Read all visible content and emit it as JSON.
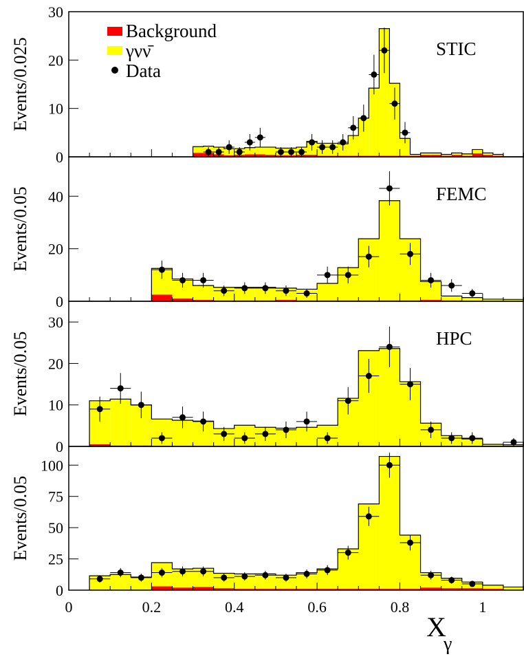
{
  "chart_data": [
    {
      "type": "bar",
      "panel_label": "STIC",
      "ylabel": "Events/0.025",
      "ylim": [
        0,
        30
      ],
      "yticks": [
        0,
        10,
        20,
        30
      ],
      "bin_width": 0.025,
      "bin_starts": [
        0.3,
        0.325,
        0.35,
        0.375,
        0.4,
        0.425,
        0.45,
        0.475,
        0.5,
        0.525,
        0.55,
        0.575,
        0.6,
        0.625,
        0.65,
        0.675,
        0.7,
        0.725,
        0.75,
        0.775,
        0.8,
        0.825,
        0.85,
        0.875,
        0.9,
        0.925,
        0.95,
        0.975,
        1.0,
        1.025,
        1.05,
        1.075
      ],
      "series": [
        {
          "name": "Background",
          "values": [
            0.8,
            0.8,
            0.5,
            0.3,
            0.4,
            0.5,
            0.5,
            0.4,
            0.3,
            0.3,
            0.4,
            0.4,
            0.2,
            0.2,
            0.2,
            0.2,
            0.2,
            0.2,
            0.2,
            0.2,
            0.2,
            0.2,
            0.4,
            0.4,
            0.2,
            0.4,
            0.2,
            0.7,
            0.4,
            0.2,
            0.0,
            0.0
          ]
        },
        {
          "name": "γνν̄",
          "values": [
            1.3,
            1.4,
            1.5,
            1.4,
            1.3,
            1.4,
            1.5,
            1.6,
            1.5,
            1.5,
            1.6,
            2.8,
            2.6,
            2.6,
            2.5,
            4.2,
            7.8,
            14.0,
            26.3,
            15.0,
            3.6,
            0.3,
            0.4,
            0.4,
            0.3,
            0.4,
            0.4,
            0.8,
            0.4,
            0.3,
            0.0,
            0.0
          ]
        }
      ],
      "data_points": {
        "name": "Data",
        "x": [
          0.3375,
          0.3625,
          0.3875,
          0.4125,
          0.4375,
          0.4625,
          0.5125,
          0.5375,
          0.5625,
          0.5875,
          0.6125,
          0.6375,
          0.6625,
          0.6875,
          0.7125,
          0.7375,
          0.7625,
          0.7875,
          0.8125
        ],
        "y": [
          1,
          1,
          2,
          1,
          3,
          4,
          1,
          1,
          1,
          3,
          2,
          2,
          3,
          6,
          8,
          17,
          22,
          11,
          5
        ],
        "err": [
          1,
          1,
          1.4,
          1,
          1.7,
          2,
          1,
          1,
          1,
          1.7,
          1.4,
          1.4,
          1.7,
          2.4,
          2.8,
          4.1,
          4.7,
          3.3,
          2.2
        ]
      }
    },
    {
      "type": "bar",
      "panel_label": "FEMC",
      "ylabel": "Events/0.05",
      "ylim": [
        0,
        55
      ],
      "yticks": [
        0,
        20,
        40
      ],
      "bin_width": 0.05,
      "bin_starts": [
        0.2,
        0.25,
        0.3,
        0.35,
        0.4,
        0.45,
        0.5,
        0.55,
        0.6,
        0.65,
        0.7,
        0.75,
        0.8,
        0.85,
        0.9,
        0.95,
        1.0,
        1.05
      ],
      "series": [
        {
          "name": "Background",
          "values": [
            2.5,
            1.0,
            0.5,
            0.3,
            0.3,
            0.3,
            0.5,
            0.3,
            0.3,
            0.3,
            0.3,
            0.3,
            0.3,
            0.5,
            0.3,
            0.2,
            0.1,
            0.1
          ]
        },
        {
          "name": "γνν̄",
          "values": [
            10.0,
            7.5,
            5.5,
            5.0,
            5.0,
            5.0,
            4.5,
            4.3,
            6.5,
            12.5,
            23.5,
            38.0,
            23.5,
            7.0,
            1.7,
            1.2,
            0.7,
            0.6
          ]
        }
      ],
      "data_points": {
        "name": "Data",
        "x": [
          0.225,
          0.275,
          0.325,
          0.375,
          0.425,
          0.475,
          0.525,
          0.575,
          0.625,
          0.675,
          0.725,
          0.775,
          0.825,
          0.875,
          0.925,
          0.975
        ],
        "y": [
          12,
          8,
          8,
          4,
          5,
          5,
          4,
          3,
          10,
          10,
          17,
          43,
          18,
          8,
          6,
          3
        ],
        "err": [
          3.5,
          2.8,
          2.8,
          2,
          2.2,
          2.2,
          2,
          1.7,
          3.2,
          3.2,
          4.1,
          6.5,
          4.2,
          2.8,
          2.4,
          1.7
        ]
      }
    },
    {
      "type": "bar",
      "panel_label": "HPC",
      "ylabel": "Events/0.05",
      "ylim": [
        0,
        35
      ],
      "yticks": [
        0,
        10,
        20,
        30
      ],
      "bin_width": 0.05,
      "bin_starts": [
        0.05,
        0.1,
        0.15,
        0.2,
        0.25,
        0.3,
        0.35,
        0.4,
        0.45,
        0.5,
        0.55,
        0.6,
        0.65,
        0.7,
        0.75,
        0.8,
        0.85,
        0.9,
        0.95,
        1.0,
        1.05
      ],
      "series": [
        {
          "name": "Background",
          "values": [
            0.5,
            0.2,
            0.2,
            0.1,
            0.1,
            0.1,
            0.1,
            0.1,
            0.1,
            0.1,
            0.1,
            0.1,
            0.1,
            0.1,
            0.1,
            0.1,
            0.1,
            0.1,
            0.1,
            0.1,
            0.1
          ]
        },
        {
          "name": "γνν̄",
          "values": [
            10.5,
            11.2,
            9.8,
            6.5,
            6.2,
            6.0,
            4.2,
            5.0,
            4.5,
            4.3,
            4.5,
            5.0,
            11.5,
            23.0,
            23.5,
            15.5,
            5.5,
            2.5,
            1.7,
            0.4,
            0.3
          ]
        }
      ],
      "data_points": {
        "name": "Data",
        "x": [
          0.075,
          0.125,
          0.175,
          0.225,
          0.275,
          0.325,
          0.375,
          0.425,
          0.475,
          0.525,
          0.575,
          0.625,
          0.675,
          0.725,
          0.775,
          0.825,
          0.875,
          0.925,
          0.975,
          1.075
        ],
        "y": [
          9,
          14,
          10,
          2,
          7,
          6,
          3,
          2,
          3,
          4,
          6,
          2,
          11,
          17,
          24,
          15,
          4,
          2,
          2,
          1
        ],
        "err": [
          3,
          3.7,
          3.2,
          1.4,
          2.6,
          2.4,
          1.7,
          1.4,
          1.7,
          2,
          2.4,
          1.4,
          3.3,
          4.1,
          4.9,
          3.9,
          2,
          1.4,
          1.4,
          1
        ]
      }
    },
    {
      "type": "bar",
      "panel_label": "",
      "ylabel": "Events/0.05",
      "ylim": [
        0,
        115
      ],
      "yticks": [
        0,
        25,
        50,
        75,
        100
      ],
      "bin_width": 0.05,
      "bin_starts": [
        0.05,
        0.1,
        0.15,
        0.2,
        0.25,
        0.3,
        0.35,
        0.4,
        0.45,
        0.5,
        0.55,
        0.6,
        0.65,
        0.7,
        0.75,
        0.8,
        0.85,
        0.9,
        0.95,
        1.0,
        1.05
      ],
      "series": [
        {
          "name": "Background",
          "values": [
            0.5,
            0.5,
            0.5,
            3.0,
            2.0,
            2.5,
            1.5,
            1.0,
            1.0,
            1.0,
            1.0,
            1.0,
            1.0,
            1.0,
            1.0,
            1.0,
            2.0,
            1.5,
            1.5,
            1.0,
            0.5
          ]
        },
        {
          "name": "γνν̄",
          "values": [
            11,
            12,
            10,
            19,
            15,
            15,
            12,
            12,
            12,
            11,
            13,
            16,
            32,
            68,
            106,
            43,
            12,
            8,
            5,
            3,
            2
          ]
        }
      ],
      "data_points": {
        "name": "Data",
        "x": [
          0.075,
          0.125,
          0.175,
          0.225,
          0.275,
          0.325,
          0.375,
          0.425,
          0.475,
          0.525,
          0.575,
          0.625,
          0.675,
          0.725,
          0.775,
          0.825,
          0.875,
          0.925,
          0.975
        ],
        "y": [
          9,
          14,
          10,
          14,
          15,
          15,
          10,
          11,
          12,
          10,
          13,
          16,
          30,
          59,
          100,
          38,
          12,
          8,
          5
        ],
        "err": [
          3,
          3.7,
          3.2,
          3.7,
          3.9,
          3.9,
          3.2,
          3.3,
          3.5,
          3.2,
          3.6,
          4,
          5.5,
          7.7,
          10,
          6.2,
          3.5,
          2.8,
          2.2
        ]
      }
    }
  ],
  "x_axis": {
    "xlim": [
      0,
      1.1
    ],
    "ticks": [
      0,
      0.2,
      0.4,
      0.6,
      0.8,
      1
    ],
    "tick_labels": [
      "0",
      "0.2",
      "0.4",
      "0.6",
      "0.8",
      "1"
    ],
    "label": "X",
    "label_subscript": "γ"
  },
  "legend": {
    "placement": "top-left of first panel",
    "entries": [
      {
        "label": "Background",
        "color": "#ff0000",
        "kind": "box"
      },
      {
        "label": "γνν̄",
        "color": "#ffff00",
        "kind": "box"
      },
      {
        "label": "Data",
        "color": "#000000",
        "kind": "marker"
      }
    ]
  },
  "colors": {
    "background": "#ff0000",
    "signal": "#ffff00",
    "data": "#000000"
  }
}
